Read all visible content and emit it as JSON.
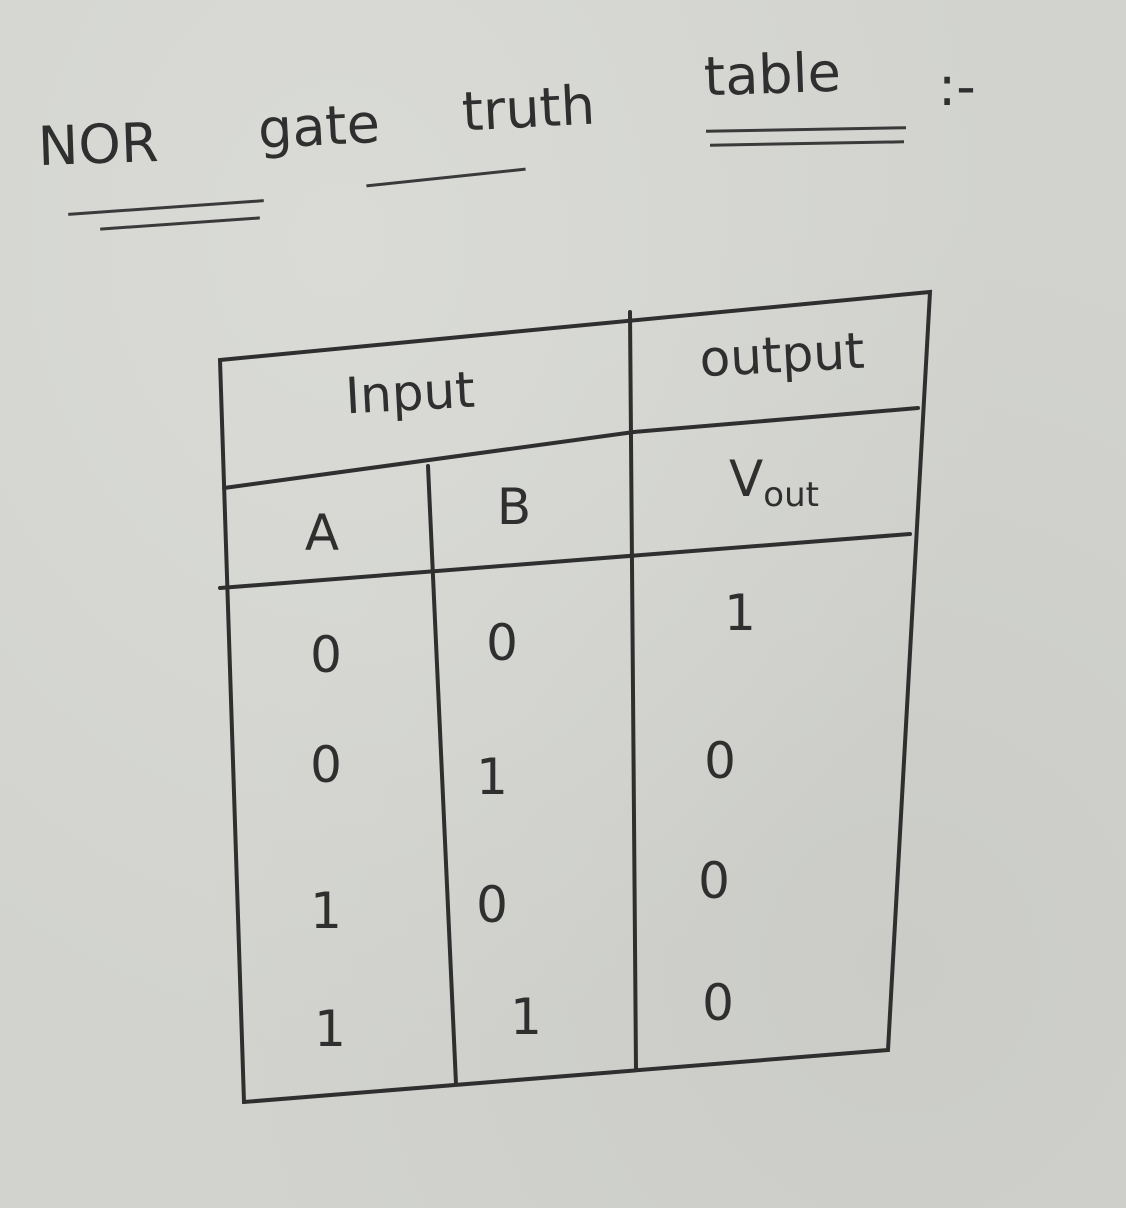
{
  "title": {
    "word1": "NOR",
    "word2": "gate",
    "word3": "truth",
    "word4": "table",
    "suffix": ":-"
  },
  "table": {
    "header_input": "Input",
    "header_output": "output",
    "col_a": "A",
    "col_b": "B",
    "col_vout_main": "V",
    "col_vout_sub": "out",
    "rows": [
      {
        "a": "0",
        "b": "0",
        "out": "1"
      },
      {
        "a": "0",
        "b": "1",
        "out": "0"
      },
      {
        "a": "1",
        "b": "0",
        "out": "0"
      },
      {
        "a": "1",
        "b": "1",
        "out": "0"
      }
    ]
  },
  "colors": {
    "ink": "#2f2f2f",
    "paper": "#d2d3cf"
  }
}
